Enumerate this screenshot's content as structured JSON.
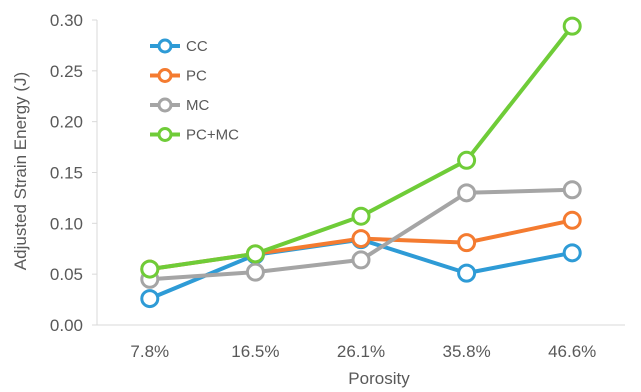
{
  "chart_data": {
    "type": "line",
    "xlabel": "Porosity",
    "ylabel": "Adjusted Strain Energy (J)",
    "categories": [
      "7.8%",
      "16.5%",
      "26.1%",
      "35.8%",
      "46.6%"
    ],
    "ylim": [
      0,
      0.3
    ],
    "yticks": [
      "0.00",
      "0.05",
      "0.10",
      "0.15",
      "0.20",
      "0.25",
      "0.30"
    ],
    "grid": false,
    "legend_position": "top-left",
    "series": [
      {
        "name": "CC",
        "color": "#2e9bd6",
        "values": [
          0.026,
          0.069,
          0.084,
          0.051,
          0.071
        ]
      },
      {
        "name": "PC",
        "color": "#f47b30",
        "values": [
          0.055,
          0.07,
          0.085,
          0.081,
          0.103
        ]
      },
      {
        "name": "MC",
        "color": "#a5a5a5",
        "values": [
          0.045,
          0.052,
          0.064,
          0.13,
          0.133
        ]
      },
      {
        "name": "PC+MC",
        "color": "#6fcc38",
        "values": [
          0.055,
          0.07,
          0.107,
          0.162,
          0.294
        ]
      }
    ]
  }
}
